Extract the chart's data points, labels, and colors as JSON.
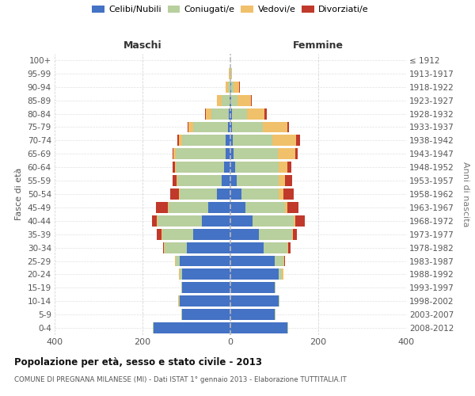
{
  "age_groups": [
    "0-4",
    "5-9",
    "10-14",
    "15-19",
    "20-24",
    "25-29",
    "30-34",
    "35-39",
    "40-44",
    "45-49",
    "50-54",
    "55-59",
    "60-64",
    "65-69",
    "70-74",
    "75-79",
    "80-84",
    "85-89",
    "90-94",
    "95-99",
    "100+"
  ],
  "birth_years": [
    "2008-2012",
    "2003-2007",
    "1998-2002",
    "1993-1997",
    "1988-1992",
    "1983-1987",
    "1978-1982",
    "1973-1977",
    "1968-1972",
    "1963-1967",
    "1958-1962",
    "1953-1957",
    "1948-1952",
    "1943-1947",
    "1938-1942",
    "1933-1937",
    "1928-1932",
    "1923-1927",
    "1918-1922",
    "1913-1917",
    "≤ 1912"
  ],
  "maschi": {
    "celibi": [
      175,
      110,
      115,
      110,
      110,
      115,
      100,
      85,
      65,
      50,
      30,
      20,
      15,
      10,
      10,
      5,
      4,
      2,
      0,
      0,
      0
    ],
    "coniugati": [
      2,
      2,
      2,
      2,
      5,
      10,
      50,
      70,
      100,
      90,
      85,
      100,
      110,
      115,
      100,
      80,
      40,
      18,
      5,
      2,
      0
    ],
    "vedovi": [
      0,
      0,
      2,
      0,
      2,
      2,
      2,
      2,
      2,
      2,
      2,
      2,
      2,
      5,
      8,
      10,
      12,
      10,
      5,
      2,
      0
    ],
    "divorziati": [
      0,
      0,
      0,
      0,
      0,
      0,
      2,
      10,
      12,
      28,
      20,
      10,
      5,
      2,
      2,
      2,
      2,
      0,
      0,
      0,
      0
    ]
  },
  "femmine": {
    "nubili": [
      130,
      100,
      110,
      100,
      110,
      100,
      75,
      65,
      50,
      35,
      25,
      15,
      10,
      8,
      5,
      4,
      3,
      2,
      2,
      0,
      0
    ],
    "coniugate": [
      2,
      2,
      2,
      2,
      8,
      20,
      55,
      75,
      95,
      90,
      85,
      95,
      100,
      100,
      90,
      70,
      35,
      15,
      5,
      2,
      0
    ],
    "vedove": [
      0,
      0,
      0,
      0,
      2,
      2,
      2,
      2,
      2,
      5,
      10,
      15,
      20,
      40,
      55,
      55,
      40,
      30,
      12,
      2,
      0
    ],
    "divorziate": [
      0,
      0,
      0,
      0,
      0,
      2,
      5,
      10,
      22,
      25,
      25,
      15,
      8,
      5,
      8,
      5,
      5,
      2,
      2,
      0,
      0
    ]
  },
  "colors": {
    "celibi": "#4472c4",
    "coniugati": "#b8cf9e",
    "vedovi": "#f0c06a",
    "divorziati": "#c0392b"
  },
  "title": "Popolazione per età, sesso e stato civile - 2013",
  "subtitle": "COMUNE DI PREGNANA MILANESE (MI) - Dati ISTAT 1° gennaio 2013 - Elaborazione TUTTITALIA.IT",
  "xlabel_left": "Maschi",
  "xlabel_right": "Femmine",
  "ylabel_left": "Fasce di età",
  "ylabel_right": "Anni di nascita",
  "xlim": 400,
  "background_color": "#ffffff",
  "grid_color": "#cccccc"
}
